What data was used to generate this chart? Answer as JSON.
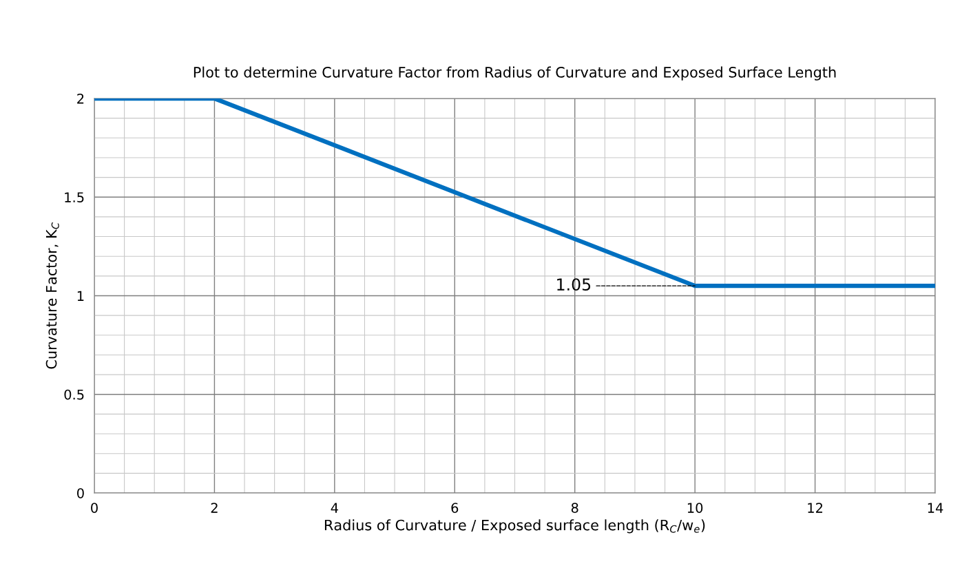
{
  "chart_data": {
    "type": "line",
    "title": "Plot to determine Curvature Factor from Radius of Curvature and Exposed Surface Length",
    "xlabel": "Radius of Curvature / Exposed surface length (R$_{C}$/w$_{e}$)",
    "ylabel": "Curvature Factor, K$_{C}$",
    "x": [
      0,
      2,
      10,
      14
    ],
    "series": [
      {
        "color": "#0070c0",
        "values": [
          2,
          2,
          1.05,
          1.05
        ]
      }
    ],
    "xlim": [
      0,
      14
    ],
    "xticks": [
      0,
      2,
      4,
      6,
      8,
      10,
      12,
      14
    ],
    "ylim": [
      0,
      2
    ],
    "yticks": [
      0,
      0.5,
      1,
      1.5,
      2
    ],
    "grid": true,
    "marker": "none",
    "line_style": "solid",
    "annotations": [
      {
        "text": "1.05",
        "x": 10,
        "y": 1.05
      }
    ]
  }
}
